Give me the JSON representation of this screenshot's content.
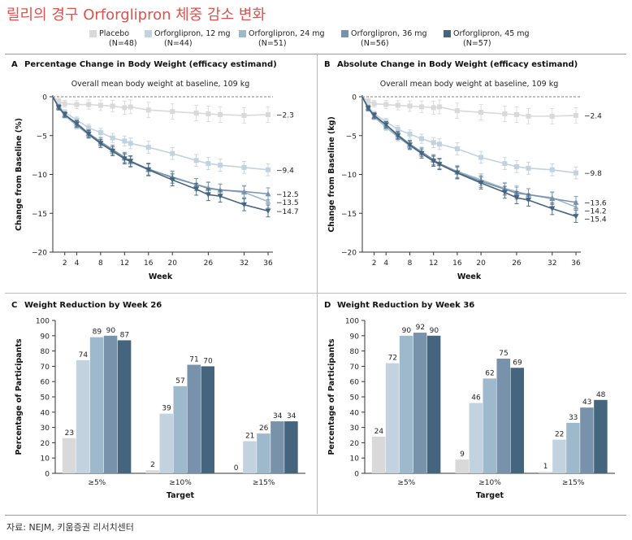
{
  "headline": "릴리의 경구 Orforglipron 체중 감소 변화",
  "source": "자료: NEJM, 키움증권 리서치센터",
  "colors": {
    "placebo": "#d9d9d9",
    "s12": "#c2d3df",
    "s24": "#9fb9cc",
    "s36": "#7992ab",
    "s45": "#45647d",
    "accent": "#d9534f"
  },
  "legend": [
    {
      "key": "placebo",
      "label": "Placebo",
      "n": "(N=48)"
    },
    {
      "key": "s12",
      "label": "Orforglipron, 12 mg",
      "n": "(N=44)"
    },
    {
      "key": "s24",
      "label": "Orforglipron, 24 mg",
      "n": "(N=51)"
    },
    {
      "key": "s36",
      "label": "Orforglipron, 36 mg",
      "n": "(N=56)"
    },
    {
      "key": "s45",
      "label": "Orforglipron, 45 mg",
      "n": "(N=57)"
    }
  ],
  "chart_data": [
    {
      "panel": "A",
      "type": "line",
      "title": "Percentage Change in Body Weight (efficacy estimand)",
      "subtitle": "Overall mean body weight at baseline, 109 kg",
      "xlabel": "Week",
      "ylabel": "Change from Baseline (%)",
      "xticks": [
        2,
        4,
        8,
        12,
        16,
        20,
        26,
        32,
        36
      ],
      "yticks": [
        0,
        -5,
        -10,
        -15,
        -20
      ],
      "xlim": [
        0,
        36
      ],
      "ylim": [
        -20,
        0
      ],
      "x": [
        0,
        1,
        2,
        4,
        6,
        8,
        10,
        12,
        13,
        16,
        20,
        24,
        26,
        28,
        32,
        36
      ],
      "series": [
        {
          "name": "Placebo",
          "key": "placebo",
          "values": [
            0,
            -0.6,
            -0.9,
            -1.0,
            -1.0,
            -1.1,
            -1.2,
            -1.4,
            -1.3,
            -1.7,
            -1.9,
            -2.1,
            -2.2,
            -2.3,
            -2.4,
            -2.3
          ],
          "end_label": "−2.3"
        },
        {
          "name": "Orforglipron, 12 mg",
          "key": "s12",
          "values": [
            0,
            -1.2,
            -2.0,
            -3.0,
            -4.0,
            -4.6,
            -5.3,
            -5.7,
            -6.0,
            -6.5,
            -7.3,
            -8.2,
            -8.6,
            -8.8,
            -9.1,
            -9.4
          ],
          "end_label": "−9.4"
        },
        {
          "name": "Orforglipron, 24 mg",
          "key": "s24",
          "values": [
            0,
            -1.4,
            -2.4,
            -3.7,
            -4.9,
            -6.0,
            -7.0,
            -7.9,
            -8.4,
            -9.4,
            -10.3,
            -11.3,
            -11.7,
            -12.0,
            -12.3,
            -13.5
          ],
          "end_label": "−13.5"
        },
        {
          "name": "Orforglipron, 36 mg",
          "key": "s36",
          "values": [
            0,
            -1.3,
            -2.3,
            -3.4,
            -4.7,
            -5.8,
            -6.8,
            -7.8,
            -8.3,
            -9.3,
            -10.4,
            -11.3,
            -11.8,
            -12.0,
            -12.2,
            -12.5
          ],
          "end_label": "−12.5"
        },
        {
          "name": "Orforglipron, 45 mg",
          "key": "s45",
          "values": [
            0,
            -1.4,
            -2.3,
            -3.5,
            -4.8,
            -6.0,
            -7.0,
            -8.0,
            -8.3,
            -9.4,
            -10.7,
            -11.9,
            -12.6,
            -12.8,
            -13.9,
            -14.7
          ],
          "end_label": "−14.7"
        }
      ]
    },
    {
      "panel": "B",
      "type": "line",
      "title": "Absolute Change in Body Weight (efficacy estimand)",
      "subtitle": "Overall mean body weight at baseline, 109 kg",
      "xlabel": "Week",
      "ylabel": "Change from Baseline (kg)",
      "xticks": [
        2,
        4,
        8,
        12,
        16,
        20,
        26,
        32,
        36
      ],
      "yticks": [
        0,
        -5,
        -10,
        -15,
        -20
      ],
      "xlim": [
        0,
        36
      ],
      "ylim": [
        -20,
        0
      ],
      "x": [
        0,
        1,
        2,
        4,
        6,
        8,
        10,
        12,
        13,
        16,
        20,
        24,
        26,
        28,
        32,
        36
      ],
      "series": [
        {
          "name": "Placebo",
          "key": "placebo",
          "values": [
            0,
            -0.6,
            -0.9,
            -1.0,
            -1.1,
            -1.2,
            -1.3,
            -1.4,
            -1.3,
            -1.8,
            -2.0,
            -2.2,
            -2.3,
            -2.5,
            -2.5,
            -2.4
          ],
          "end_label": "−2.4"
        },
        {
          "name": "Orforglipron, 12 mg",
          "key": "s12",
          "values": [
            0,
            -1.3,
            -2.2,
            -3.2,
            -4.2,
            -4.8,
            -5.4,
            -5.9,
            -6.1,
            -6.7,
            -7.8,
            -8.6,
            -9.0,
            -9.2,
            -9.4,
            -9.8
          ],
          "end_label": "−9.8"
        },
        {
          "name": "Orforglipron, 24 mg",
          "key": "s24",
          "values": [
            0,
            -1.5,
            -2.6,
            -3.9,
            -5.2,
            -6.3,
            -7.3,
            -8.2,
            -8.6,
            -9.6,
            -10.7,
            -11.8,
            -12.2,
            -12.6,
            -13.0,
            -14.2
          ],
          "end_label": "−14.2"
        },
        {
          "name": "Orforglipron, 36 mg",
          "key": "s36",
          "values": [
            0,
            -1.4,
            -2.5,
            -3.6,
            -4.9,
            -6.1,
            -7.1,
            -8.1,
            -8.6,
            -9.7,
            -10.9,
            -11.9,
            -12.4,
            -12.6,
            -13.1,
            -13.6
          ],
          "end_label": "−13.6"
        },
        {
          "name": "Orforglipron, 45 mg",
          "key": "s45",
          "values": [
            0,
            -1.5,
            -2.4,
            -3.6,
            -5.0,
            -6.2,
            -7.3,
            -8.3,
            -8.7,
            -9.8,
            -11.1,
            -12.3,
            -13.0,
            -13.3,
            -14.4,
            -15.4
          ],
          "end_label": "−15.4"
        }
      ]
    },
    {
      "panel": "C",
      "type": "bar",
      "title": "Weight Reduction by Week 26",
      "xlabel": "Target",
      "ylabel": "Percentage of Participants",
      "ylim": [
        0,
        100
      ],
      "yticks": [
        0,
        10,
        20,
        30,
        40,
        50,
        60,
        70,
        80,
        90,
        100
      ],
      "categories": [
        "≥5%",
        "≥10%",
        "≥15%"
      ],
      "series": [
        {
          "name": "Placebo",
          "key": "placebo",
          "values": [
            23,
            2,
            0
          ]
        },
        {
          "name": "Orforglipron, 12 mg",
          "key": "s12",
          "values": [
            74,
            39,
            21
          ]
        },
        {
          "name": "Orforglipron, 24 mg",
          "key": "s24",
          "values": [
            89,
            57,
            26
          ]
        },
        {
          "name": "Orforglipron, 36 mg",
          "key": "s36",
          "values": [
            90,
            71,
            34
          ]
        },
        {
          "name": "Orforglipron, 45 mg",
          "key": "s45",
          "values": [
            87,
            70,
            34
          ]
        }
      ]
    },
    {
      "panel": "D",
      "type": "bar",
      "title": "Weight Reduction by Week 36",
      "xlabel": "Target",
      "ylabel": "Percentage of Participants",
      "ylim": [
        0,
        100
      ],
      "yticks": [
        0,
        10,
        20,
        30,
        40,
        50,
        60,
        70,
        80,
        90,
        100
      ],
      "categories": [
        "≥5%",
        "≥10%",
        "≥15%"
      ],
      "series": [
        {
          "name": "Placebo",
          "key": "placebo",
          "values": [
            24,
            9,
            1
          ]
        },
        {
          "name": "Orforglipron, 12 mg",
          "key": "s12",
          "values": [
            72,
            46,
            22
          ]
        },
        {
          "name": "Orforglipron, 24 mg",
          "key": "s24",
          "values": [
            90,
            62,
            33
          ]
        },
        {
          "name": "Orforglipron, 36 mg",
          "key": "s36",
          "values": [
            92,
            75,
            43
          ]
        },
        {
          "name": "Orforglipron, 45 mg",
          "key": "s45",
          "values": [
            90,
            69,
            48
          ]
        }
      ]
    }
  ]
}
